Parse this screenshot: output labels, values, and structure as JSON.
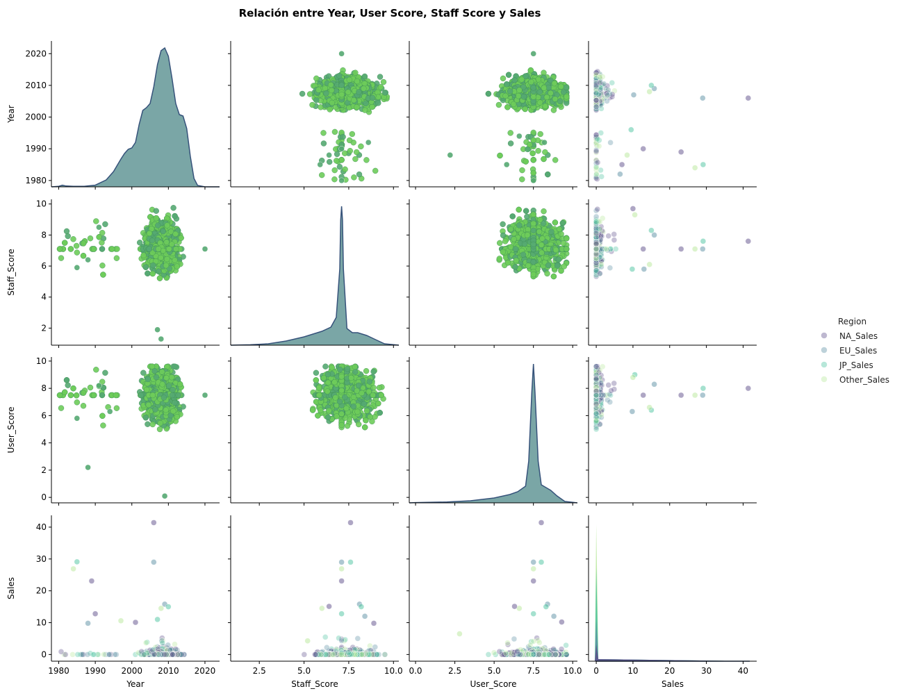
{
  "chart_data": {
    "type": "scatter",
    "title": "Relación entre Year, User Score, Staff Score y Sales",
    "variables": [
      "Year",
      "Staff_Score",
      "User_Score",
      "Sales"
    ],
    "axes": {
      "Year": {
        "label": "Year",
        "range": [
          1978,
          2024
        ],
        "ticks": [
          1980,
          1990,
          2000,
          2010,
          2020
        ],
        "tick_labels": [
          "1980",
          "1990",
          "2000",
          "2010",
          "2020"
        ]
      },
      "Staff_Score": {
        "label": "Staff_Score",
        "range": [
          0.9,
          10.3
        ],
        "x_ticks": [
          2.5,
          5.0,
          7.5,
          10.0
        ],
        "x_tick_labels": [
          "2.5",
          "5.0",
          "7.5",
          "10.0"
        ],
        "y_ticks": [
          2,
          4,
          6,
          8,
          10
        ],
        "y_tick_labels": [
          "2",
          "4",
          "6",
          "8",
          "10"
        ]
      },
      "User_Score": {
        "label": "User_Score",
        "range": [
          -0.4,
          10.3
        ],
        "x_ticks": [
          0.0,
          2.5,
          5.0,
          7.5,
          10.0
        ],
        "x_tick_labels": [
          "0.0",
          "2.5",
          "5.0",
          "7.5",
          "10.0"
        ],
        "y_ticks": [
          0,
          2,
          4,
          6,
          8,
          10
        ],
        "y_tick_labels": [
          "0",
          "2",
          "4",
          "6",
          "8",
          "10"
        ]
      },
      "Sales": {
        "label": "Sales",
        "range": [
          -2.1,
          43.7
        ],
        "ticks": [
          0,
          10,
          20,
          30,
          40
        ],
        "tick_labels": [
          "0",
          "10",
          "20",
          "30",
          "40"
        ]
      }
    },
    "legend": {
      "title": "Region",
      "placement": "center-right",
      "entries": [
        {
          "name": "NA_Sales",
          "color": "#5d4d8a"
        },
        {
          "name": "EU_Sales",
          "color": "#5b8fa3"
        },
        {
          "name": "JP_Sales",
          "color": "#4cc3a0"
        },
        {
          "name": "Other_Sales",
          "color": "#b7e89a"
        }
      ]
    },
    "colors": {
      "scatter_main": "#6ecc5a",
      "scatter_edge": "#3d8f55",
      "kde_fill": "#7aa6a6",
      "kde_line": "#36527a"
    },
    "kde": {
      "Year": {
        "x": [
          1978,
          1980,
          1981,
          1982,
          1984,
          1987,
          1990,
          1993,
          1995,
          1997,
          1998,
          1999,
          2000,
          2001,
          2002,
          2003,
          2004,
          2005,
          2006,
          2007,
          2008,
          2009,
          2010,
          2011,
          2012,
          2013,
          2014,
          2015,
          2016,
          2017,
          2018,
          2020,
          2024
        ],
        "y": [
          0.0,
          0.004,
          0.012,
          0.006,
          0.004,
          0.004,
          0.012,
          0.05,
          0.11,
          0.2,
          0.24,
          0.27,
          0.28,
          0.32,
          0.45,
          0.55,
          0.57,
          0.6,
          0.72,
          0.88,
          0.98,
          1.0,
          0.94,
          0.78,
          0.6,
          0.52,
          0.51,
          0.42,
          0.22,
          0.06,
          0.01,
          0.0,
          0.0
        ]
      },
      "Staff_Score": {
        "x": [
          0.9,
          2.0,
          3.0,
          4.0,
          5.0,
          5.5,
          6.0,
          6.5,
          6.8,
          7.0,
          7.05,
          7.1,
          7.15,
          7.2,
          7.4,
          7.7,
          8.0,
          8.5,
          9.0,
          9.5,
          10.3
        ],
        "y": [
          0.0,
          0.003,
          0.01,
          0.03,
          0.06,
          0.08,
          0.1,
          0.13,
          0.2,
          0.55,
          0.9,
          1.0,
          0.9,
          0.55,
          0.12,
          0.09,
          0.09,
          0.07,
          0.04,
          0.01,
          0.0
        ]
      },
      "User_Score": {
        "x": [
          -0.4,
          0.0,
          2.0,
          3.5,
          5.0,
          6.0,
          6.5,
          7.0,
          7.2,
          7.4,
          7.5,
          7.6,
          7.8,
          8.0,
          8.3,
          8.6,
          9.0,
          9.5,
          10.3
        ],
        "y": [
          0.0,
          0.002,
          0.006,
          0.015,
          0.035,
          0.06,
          0.08,
          0.12,
          0.3,
          0.8,
          1.0,
          0.8,
          0.3,
          0.13,
          0.11,
          0.09,
          0.05,
          0.01,
          0.0
        ]
      },
      "Sales": {
        "series": [
          {
            "name": "Other_Sales",
            "peak": 41.0
          },
          {
            "name": "JP_Sales",
            "peak": 28.0
          },
          {
            "name": "EU_Sales",
            "peak": 12.5
          },
          {
            "name": "NA_Sales",
            "peak": 5.0
          }
        ]
      }
    },
    "outliers": {
      "Year_Sales": [
        [
          2006,
          41.4
        ],
        [
          2006,
          29.0
        ],
        [
          1985,
          29.1
        ],
        [
          1984,
          26.9
        ],
        [
          1989,
          23.1
        ],
        [
          2009,
          15.8
        ],
        [
          2010,
          15.0
        ],
        [
          2008,
          14.5
        ],
        [
          1990,
          12.8
        ],
        [
          1988,
          9.8
        ],
        [
          2007,
          11.0
        ],
        [
          1997,
          10.6
        ],
        [
          2001,
          10.1
        ]
      ],
      "Sales_Year": [
        [
          41.4,
          2006
        ],
        [
          29.0,
          2006
        ],
        [
          29.1,
          1985
        ],
        [
          26.9,
          1984
        ],
        [
          23.1,
          1989
        ],
        [
          15.8,
          2009
        ],
        [
          15.0,
          2010
        ],
        [
          14.5,
          2008
        ],
        [
          12.8,
          1990
        ],
        [
          10.2,
          2007
        ],
        [
          9.5,
          1996
        ],
        [
          8.4,
          1988
        ],
        [
          7.0,
          1985
        ],
        [
          6.5,
          1982
        ]
      ],
      "StaffScore_Sales": [
        [
          7.6,
          41.4
        ],
        [
          7.1,
          29.0
        ],
        [
          7.6,
          29.0
        ],
        [
          7.1,
          26.9
        ],
        [
          7.1,
          23.1
        ],
        [
          8.1,
          15.8
        ],
        [
          8.2,
          15.0
        ],
        [
          6.0,
          14.5
        ],
        [
          6.4,
          15.1
        ],
        [
          8.4,
          12.0
        ],
        [
          7.1,
          12.8
        ],
        [
          5.2,
          4.3
        ],
        [
          8.9,
          9.8
        ]
      ],
      "Sales_StaffScore": [
        [
          41.4,
          7.6
        ],
        [
          29.0,
          7.1
        ],
        [
          29.1,
          7.6
        ],
        [
          26.9,
          7.1
        ],
        [
          23.1,
          7.1
        ],
        [
          15.8,
          8.0
        ],
        [
          15.0,
          8.3
        ],
        [
          14.5,
          6.1
        ],
        [
          12.8,
          7.1
        ],
        [
          13.0,
          5.8
        ],
        [
          9.8,
          5.8
        ],
        [
          10.5,
          9.3
        ],
        [
          10.0,
          9.7
        ]
      ],
      "UserScore_Sales": [
        [
          8.0,
          41.4
        ],
        [
          7.5,
          29.0
        ],
        [
          8.0,
          29.0
        ],
        [
          7.5,
          26.9
        ],
        [
          7.5,
          23.1
        ],
        [
          8.4,
          15.8
        ],
        [
          8.3,
          15.0
        ],
        [
          6.6,
          14.5
        ],
        [
          6.3,
          15.1
        ],
        [
          8.8,
          12.0
        ],
        [
          7.5,
          12.8
        ],
        [
          2.8,
          6.5
        ],
        [
          9.3,
          10.2
        ]
      ],
      "Sales_UserScore": [
        [
          41.4,
          8.0
        ],
        [
          29.0,
          7.5
        ],
        [
          29.1,
          8.0
        ],
        [
          26.9,
          7.5
        ],
        [
          23.1,
          7.5
        ],
        [
          15.8,
          8.3
        ],
        [
          15.0,
          6.4
        ],
        [
          14.5,
          6.6
        ],
        [
          12.8,
          7.5
        ],
        [
          9.8,
          6.3
        ],
        [
          10.5,
          9.0
        ],
        [
          10.0,
          8.8
        ]
      ],
      "StaffScore_Year": [
        [
          5.9,
          1985
        ],
        [
          6.4,
          1988
        ],
        [
          8.6,
          1992
        ],
        [
          7.1,
          1980
        ],
        [
          7.1,
          1990
        ],
        [
          7.1,
          2020
        ]
      ],
      "UserScore_Year": [
        [
          5.8,
          1985
        ],
        [
          2.2,
          1988
        ],
        [
          6.6,
          1994
        ],
        [
          8.2,
          1992
        ],
        [
          7.5,
          1980
        ],
        [
          7.5,
          2020
        ]
      ],
      "Year_StaffScore": [
        [
          1985,
          5.9
        ],
        [
          1988,
          6.4
        ],
        [
          1991,
          8.5
        ],
        [
          2020,
          7.1
        ],
        [
          2008,
          1.3
        ],
        [
          2007,
          1.9
        ]
      ],
      "Year_UserScore": [
        [
          1985,
          5.8
        ],
        [
          1988,
          2.2
        ],
        [
          1991,
          8.2
        ],
        [
          1994,
          6.3
        ],
        [
          2020,
          7.5
        ],
        [
          2009,
          0.1
        ]
      ]
    }
  }
}
